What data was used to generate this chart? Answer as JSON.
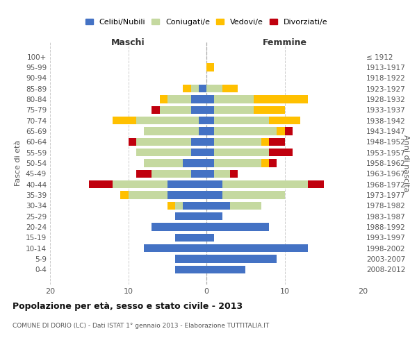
{
  "age_groups": [
    "100+",
    "95-99",
    "90-94",
    "85-89",
    "80-84",
    "75-79",
    "70-74",
    "65-69",
    "60-64",
    "55-59",
    "50-54",
    "45-49",
    "40-44",
    "35-39",
    "30-34",
    "25-29",
    "20-24",
    "15-19",
    "10-14",
    "5-9",
    "0-4"
  ],
  "birth_years": [
    "≤ 1912",
    "1913-1917",
    "1918-1922",
    "1923-1927",
    "1928-1932",
    "1933-1937",
    "1938-1942",
    "1943-1947",
    "1948-1952",
    "1953-1957",
    "1958-1962",
    "1963-1967",
    "1968-1972",
    "1973-1977",
    "1978-1982",
    "1983-1987",
    "1988-1992",
    "1993-1997",
    "1998-2002",
    "2003-2007",
    "2008-2012"
  ],
  "maschi": {
    "celibi": [
      0,
      0,
      0,
      1,
      2,
      2,
      1,
      1,
      2,
      2,
      3,
      2,
      5,
      5,
      3,
      4,
      7,
      4,
      8,
      4,
      4
    ],
    "coniugati": [
      0,
      0,
      0,
      1,
      3,
      4,
      8,
      7,
      7,
      7,
      5,
      5,
      7,
      5,
      1,
      0,
      0,
      0,
      0,
      0,
      0
    ],
    "vedovi": [
      0,
      0,
      0,
      1,
      1,
      0,
      3,
      0,
      0,
      0,
      0,
      0,
      0,
      1,
      1,
      0,
      0,
      0,
      0,
      0,
      0
    ],
    "divorziati": [
      0,
      0,
      0,
      0,
      0,
      1,
      0,
      0,
      1,
      0,
      0,
      2,
      3,
      0,
      0,
      0,
      0,
      0,
      0,
      0,
      0
    ]
  },
  "femmine": {
    "nubili": [
      0,
      0,
      0,
      0,
      1,
      1,
      1,
      1,
      1,
      1,
      1,
      1,
      2,
      2,
      3,
      2,
      8,
      1,
      13,
      9,
      5
    ],
    "coniugate": [
      0,
      0,
      0,
      2,
      5,
      5,
      7,
      8,
      6,
      7,
      6,
      2,
      11,
      8,
      4,
      0,
      0,
      0,
      0,
      0,
      0
    ],
    "vedove": [
      0,
      1,
      0,
      2,
      7,
      4,
      4,
      1,
      1,
      0,
      1,
      0,
      0,
      0,
      0,
      0,
      0,
      0,
      0,
      0,
      0
    ],
    "divorziate": [
      0,
      0,
      0,
      0,
      0,
      0,
      0,
      1,
      2,
      3,
      1,
      1,
      2,
      0,
      0,
      0,
      0,
      0,
      0,
      0,
      0
    ]
  },
  "color_celibi": "#4472c4",
  "color_coniugati": "#c5d9a0",
  "color_vedovi": "#ffc000",
  "color_divorziati": "#c0000e",
  "xlim": 20,
  "title": "Popolazione per età, sesso e stato civile - 2013",
  "subtitle": "COMUNE DI DORIO (LC) - Dati ISTAT 1° gennaio 2013 - Elaborazione TUTTITALIA.IT",
  "ylabel_left": "Fasce di età",
  "ylabel_right": "Anni di nascita",
  "xlabel_maschi": "Maschi",
  "xlabel_femmine": "Femmine",
  "legend_labels": [
    "Celibi/Nubili",
    "Coniugati/e",
    "Vedovi/e",
    "Divorziati/e"
  ],
  "background_color": "#ffffff",
  "grid_color": "#cccccc"
}
